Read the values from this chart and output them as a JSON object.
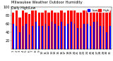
{
  "title": "Milwaukee Weather Outdoor Humidity",
  "subtitle": "Daily High/Low",
  "high_values": [
    87,
    93,
    75,
    93,
    87,
    83,
    93,
    93,
    87,
    87,
    93,
    87,
    93,
    87,
    87,
    93,
    87,
    93,
    93,
    93,
    87,
    87,
    93,
    93,
    87,
    93,
    93,
    93,
    87,
    87,
    93
  ],
  "low_values": [
    60,
    55,
    40,
    55,
    60,
    35,
    55,
    65,
    55,
    55,
    60,
    55,
    65,
    60,
    55,
    65,
    55,
    60,
    65,
    60,
    50,
    50,
    60,
    60,
    55,
    65,
    65,
    55,
    55,
    40,
    55
  ],
  "bar_color_high": "#FF0000",
  "bar_color_low": "#0000FF",
  "background_color": "#FFFFFF",
  "ylim": [
    0,
    100
  ],
  "yticks": [
    20,
    40,
    60,
    80,
    100
  ],
  "ylabel_fontsize": 3.5,
  "xlabel_fontsize": 3.0,
  "title_fontsize": 3.8,
  "legend_high": "High",
  "legend_low": "Low"
}
